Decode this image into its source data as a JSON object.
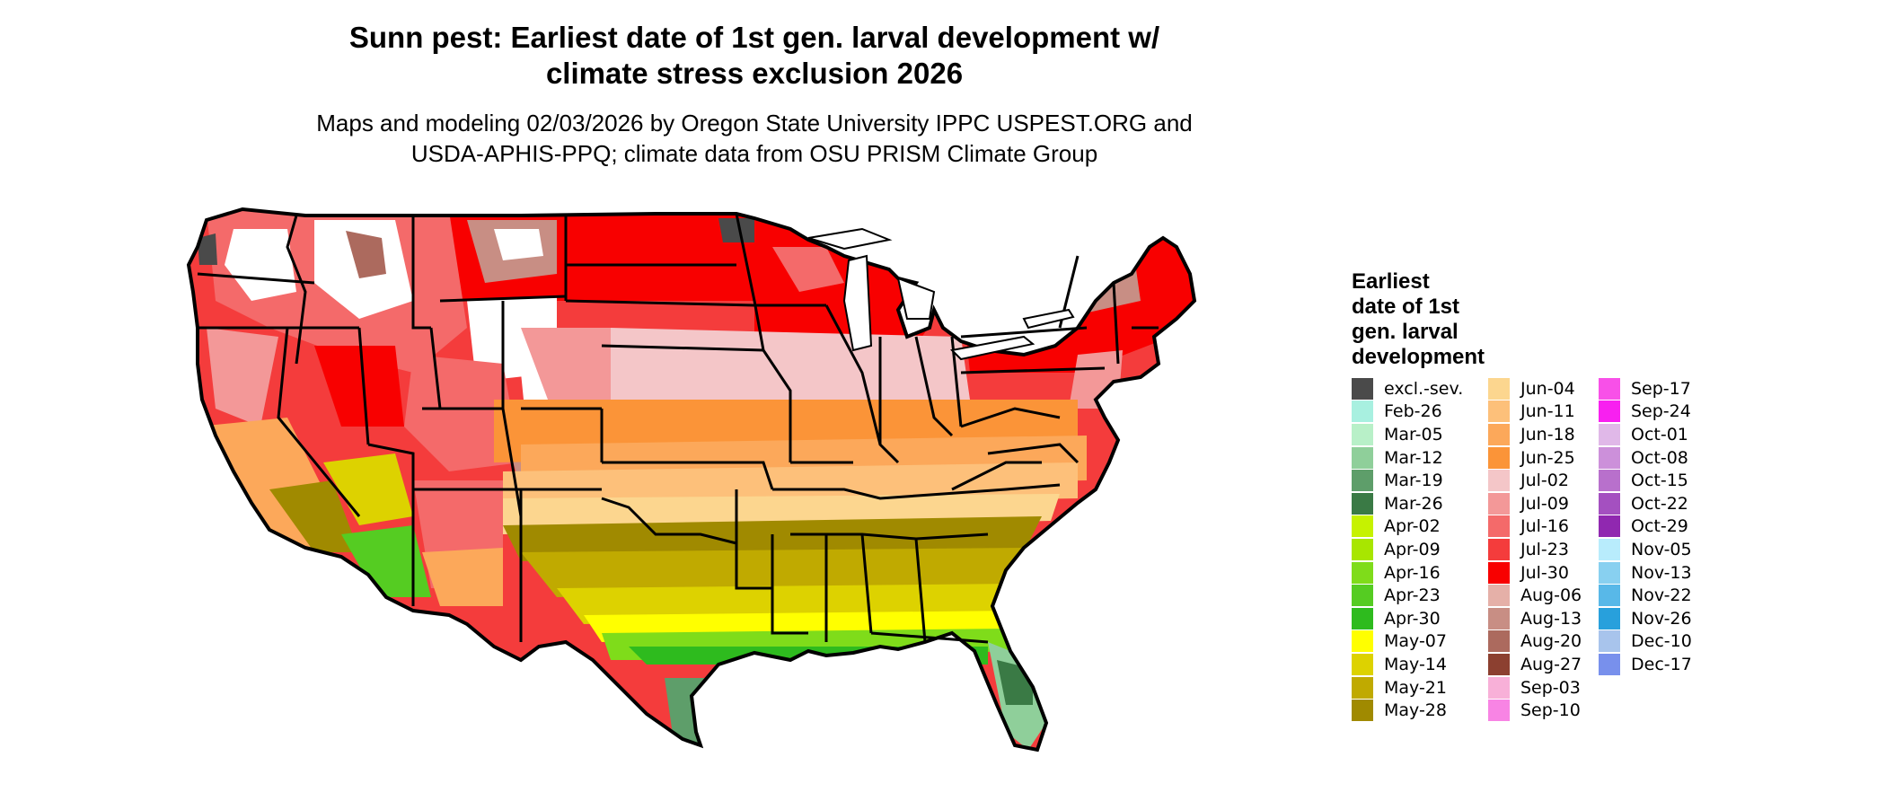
{
  "title_line1": "Sunn pest: Earliest date of 1st gen. larval development w/",
  "title_line2": "climate stress exclusion 2026",
  "subtitle_line1": "Maps and modeling 02/03/2026 by Oregon State University IPPC USPEST.ORG and",
  "subtitle_line2": "USDA-APHIS-PPQ; climate data from OSU PRISM Climate Group",
  "legend": {
    "title_lines": [
      "Earliest",
      "date of 1st",
      "gen. larval",
      "development"
    ],
    "columns": [
      [
        {
          "label": "excl.-sev.",
          "color": "#4a4a4a"
        },
        {
          "label": "Feb-26",
          "color": "#a8f0e0"
        },
        {
          "label": "Mar-05",
          "color": "#b8f0c8"
        },
        {
          "label": "Mar-12",
          "color": "#8fcf9a"
        },
        {
          "label": "Mar-19",
          "color": "#5e9e6a"
        },
        {
          "label": "Mar-26",
          "color": "#3a7a45"
        },
        {
          "label": "Apr-02",
          "color": "#c6f200"
        },
        {
          "label": "Apr-09",
          "color": "#a8e600"
        },
        {
          "label": "Apr-16",
          "color": "#7fdc1a"
        },
        {
          "label": "Apr-23",
          "color": "#55cc22"
        },
        {
          "label": "Apr-30",
          "color": "#2ebb1e"
        },
        {
          "label": "May-07",
          "color": "#ffff00"
        },
        {
          "label": "May-14",
          "color": "#ddd200"
        },
        {
          "label": "May-21",
          "color": "#c0aa00"
        },
        {
          "label": "May-28",
          "color": "#a08a00"
        }
      ],
      [
        {
          "label": "Jun-04",
          "color": "#fcd68f"
        },
        {
          "label": "Jun-11",
          "color": "#fdc07a"
        },
        {
          "label": "Jun-18",
          "color": "#fca85a"
        },
        {
          "label": "Jun-25",
          "color": "#fb9438"
        },
        {
          "label": "Jul-02",
          "color": "#f4c6c8"
        },
        {
          "label": "Jul-09",
          "color": "#f39898"
        },
        {
          "label": "Jul-16",
          "color": "#f46a6a"
        },
        {
          "label": "Jul-23",
          "color": "#f43c3c"
        },
        {
          "label": "Jul-30",
          "color": "#f80000"
        },
        {
          "label": "Aug-06",
          "color": "#e5b0a8"
        },
        {
          "label": "Aug-13",
          "color": "#c88e84"
        },
        {
          "label": "Aug-20",
          "color": "#ac6a5e"
        },
        {
          "label": "Aug-27",
          "color": "#8c4030"
        },
        {
          "label": "Sep-03",
          "color": "#f8b0d8"
        },
        {
          "label": "Sep-10",
          "color": "#f884e4"
        }
      ],
      [
        {
          "label": "Sep-17",
          "color": "#f850e8"
        },
        {
          "label": "Sep-24",
          "color": "#f820f0"
        },
        {
          "label": "Oct-01",
          "color": "#e0b8e8"
        },
        {
          "label": "Oct-08",
          "color": "#cc90da"
        },
        {
          "label": "Oct-15",
          "color": "#b870cc"
        },
        {
          "label": "Oct-22",
          "color": "#a450c0"
        },
        {
          "label": "Oct-29",
          "color": "#9028b0"
        },
        {
          "label": "Nov-05",
          "color": "#b8ecfc"
        },
        {
          "label": "Nov-13",
          "color": "#88d0f0"
        },
        {
          "label": "Nov-22",
          "color": "#58b8e8"
        },
        {
          "label": "Nov-26",
          "color": "#28a0dc"
        },
        {
          "label": "Dec-10",
          "color": "#a8c4ec"
        },
        {
          "label": "Dec-17",
          "color": "#7890ec"
        }
      ]
    ]
  },
  "palette": {
    "excluded": "#4a4a4a",
    "no_development": "#ffffff",
    "border": "#000000"
  }
}
